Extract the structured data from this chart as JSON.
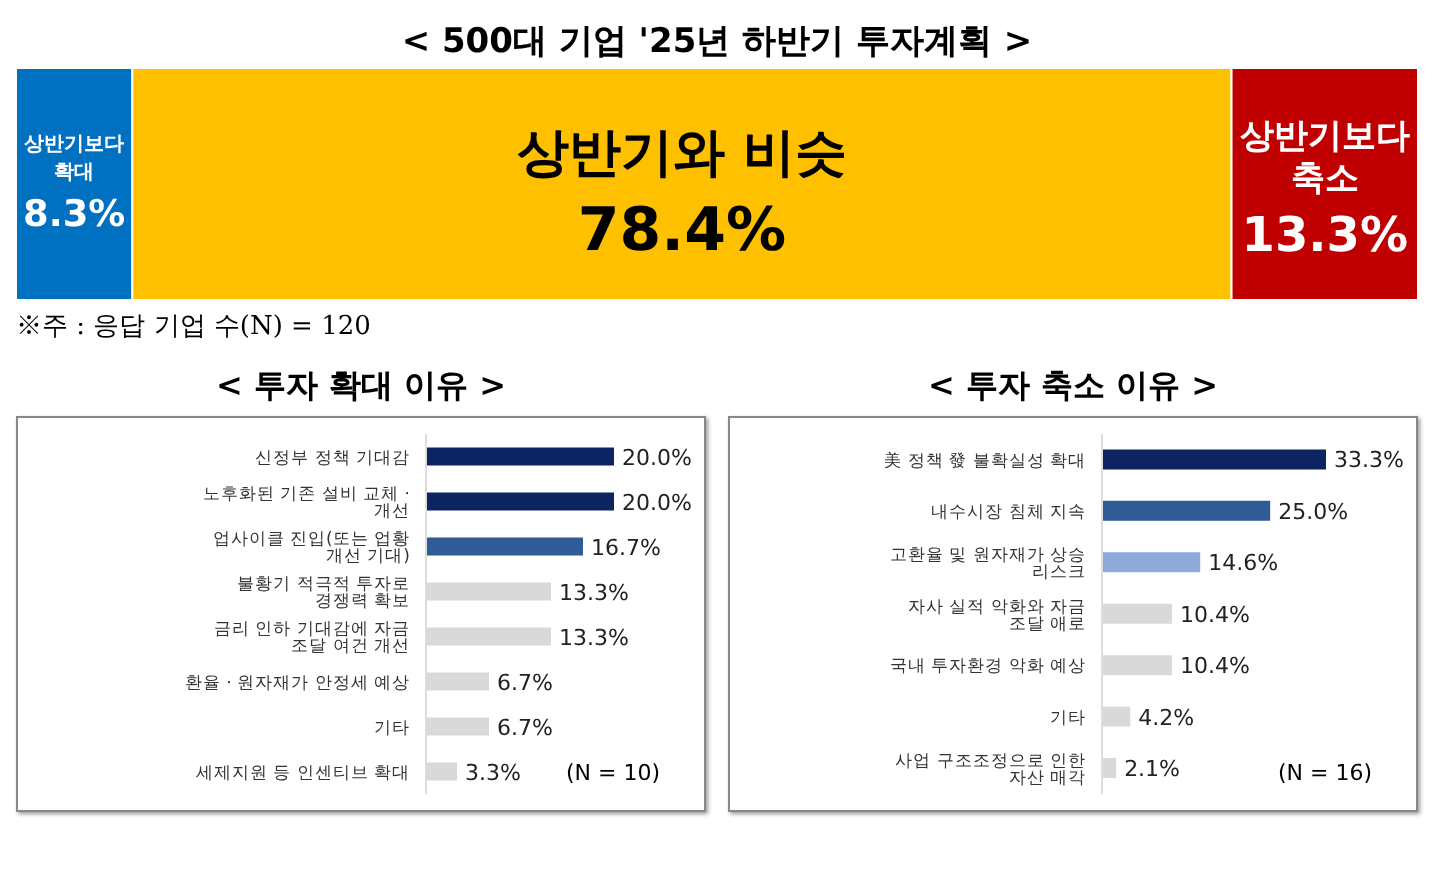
{
  "chart_data": [
    {
      "type": "bar",
      "title": "< 500대 기업 '25년 하반기 투자계획 >",
      "stacked": true,
      "orientation": "horizontal",
      "categories": [
        null
      ],
      "tick_labels": false,
      "series": [
        {
          "name": "상반기보다 확대",
          "color": "#0070c0",
          "values": [
            8.3
          ],
          "value_labels": [
            "8.3%"
          ]
        },
        {
          "name": "상반기와 비슷",
          "color": "#ffc000",
          "values": [
            78.4
          ],
          "value_labels": [
            "78.4%"
          ]
        },
        {
          "name": "상반기보다 축소",
          "color": "#c00000",
          "values": [
            13.3
          ],
          "value_labels": [
            "13.3%"
          ]
        }
      ],
      "annotations": [
        "※주 : 응답 기업 수(N) = 120"
      ]
    },
    {
      "type": "bar",
      "title": "< 투자 확대 이유 >",
      "orientation": "horizontal",
      "tick_labels": "y",
      "categories": [
        "신정부 정책 기대감",
        "노후화된 기존 설비 교체 · 개선",
        "업사이클 진입(또는 업황 개선 기대)",
        "불황기 적극적 투자로 경쟁력 확보",
        "금리 인하 기대감에 자금 조달 여건 개선",
        "환율 · 원자재가 안정세 예상",
        "기타",
        "세제지원 등 인센티브 확대"
      ],
      "values": [
        20.0,
        20.0,
        16.7,
        13.3,
        13.3,
        6.7,
        6.7,
        3.3
      ],
      "value_labels": [
        "20.0%",
        "20.0%",
        "16.7%",
        "13.3%",
        "13.3%",
        "6.7%",
        "6.7%",
        "3.3%"
      ],
      "colors": [
        "#0c2461",
        "#0c2461",
        "#2f5b96",
        "#d9d9d9",
        "#d9d9d9",
        "#d9d9d9",
        "#d9d9d9",
        "#d9d9d9"
      ],
      "annotations": [
        "(N = 10)"
      ]
    },
    {
      "type": "bar",
      "title": "< 투자 축소 이유 >",
      "orientation": "horizontal",
      "tick_labels": "y",
      "categories": [
        "美 정책 發 불확실성 확대",
        "내수시장 침체 지속",
        "고환율 및 원자재가 상승 리스크",
        "자사 실적 악화와 자금 조달 애로",
        "국내 투자환경 악화 예상",
        "기타",
        "사업 구조조정으로 인한 자산 매각"
      ],
      "values": [
        33.3,
        25.0,
        14.6,
        10.4,
        10.4,
        4.2,
        2.1
      ],
      "value_labels": [
        "33.3%",
        "25.0%",
        "14.6%",
        "10.4%",
        "10.4%",
        "4.2%",
        "2.1%"
      ],
      "colors": [
        "#0c2461",
        "#2f5b96",
        "#8eaadb",
        "#d9d9d9",
        "#d9d9d9",
        "#d9d9d9",
        "#d9d9d9"
      ],
      "annotations": [
        "(N = 16)"
      ]
    }
  ]
}
